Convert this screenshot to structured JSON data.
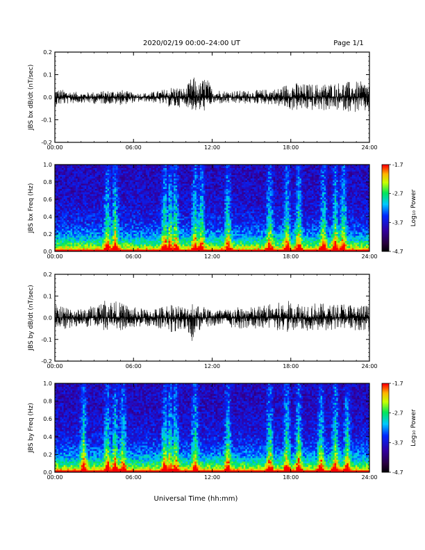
{
  "header": {
    "date_range": "2020/02/19  00:00–24:00 UT",
    "page": "Page 1/1"
  },
  "footer": {
    "xlabel": "Universal Time (hh:mm)"
  },
  "chart_data": [
    {
      "type": "line",
      "ylabel": "JBS bx dB/dt (nT/sec)",
      "ylim": [
        -0.2,
        0.2
      ],
      "yticks": [
        "0.2",
        "0.1",
        "0.0",
        "-0.1",
        "-0.2"
      ],
      "xlim": [
        0,
        24
      ],
      "xticks": [
        "00:00",
        "06:00",
        "12:00",
        "18:00",
        "24:00"
      ],
      "series": [
        {
          "hours": [
            0,
            1,
            2,
            3,
            4,
            5,
            6,
            7,
            8,
            9,
            10,
            10.5,
            11,
            11.5,
            12,
            13,
            14,
            15,
            16,
            17,
            18,
            19,
            20,
            21,
            22,
            23,
            24
          ],
          "envelope_max": [
            0.04,
            0.03,
            0.02,
            0.025,
            0.03,
            0.035,
            0.02,
            0.02,
            0.03,
            0.05,
            0.04,
            0.1,
            0.06,
            0.1,
            0.04,
            0.03,
            0.03,
            0.03,
            0.035,
            0.04,
            0.07,
            0.06,
            0.06,
            0.065,
            0.07,
            0.07,
            0.07
          ],
          "envelope_min": [
            -0.04,
            -0.03,
            -0.025,
            -0.03,
            -0.03,
            -0.035,
            -0.025,
            -0.02,
            -0.03,
            -0.05,
            -0.04,
            -0.06,
            -0.07,
            -0.06,
            -0.03,
            -0.03,
            -0.03,
            -0.03,
            -0.03,
            -0.04,
            -0.06,
            -0.06,
            -0.06,
            -0.06,
            -0.06,
            -0.07,
            -0.07
          ]
        }
      ],
      "grid": false
    },
    {
      "type": "heatmap",
      "ylabel": "JBS bx Freq (Hz)",
      "ylim": [
        0,
        1
      ],
      "yticks": [
        "1.0",
        "0.8",
        "0.6",
        "0.4",
        "0.2",
        "0.0"
      ],
      "xlim": [
        0,
        24
      ],
      "xticks": [
        "00:00",
        "06:00",
        "12:00",
        "18:00",
        "24:00"
      ],
      "colorbar": {
        "label": "Log₁₀ Power",
        "ticks": [
          "-1.7",
          "-2.7",
          "-3.7",
          "-4.7"
        ],
        "range": [
          -4.7,
          -1.7
        ]
      },
      "bright_bands_hours": [
        4.0,
        4.6,
        8.4,
        8.8,
        9.2,
        10.7,
        11.2,
        13.2,
        16.4,
        17.7,
        18.6,
        20.5,
        21.4,
        22.0
      ]
    },
    {
      "type": "line",
      "ylabel": "JBS by dB/dt (nT/sec)",
      "ylim": [
        -0.2,
        0.2
      ],
      "yticks": [
        "0.2",
        "0.1",
        "0.0",
        "-0.1",
        "-0.2"
      ],
      "xlim": [
        0,
        24
      ],
      "xticks": [
        "00:00",
        "06:00",
        "12:00",
        "18:00",
        "24:00"
      ],
      "series": [
        {
          "hours": [
            0,
            1,
            2,
            3,
            4,
            5,
            6,
            7,
            8,
            9,
            10,
            10.5,
            11,
            11.5,
            12,
            13,
            14,
            15,
            16,
            17,
            18,
            19,
            20,
            21,
            22,
            23,
            24
          ],
          "envelope_max": [
            0.06,
            0.05,
            0.04,
            0.06,
            0.09,
            0.07,
            0.05,
            0.04,
            0.05,
            0.07,
            0.05,
            0.08,
            0.06,
            0.05,
            0.04,
            0.04,
            0.05,
            0.05,
            0.06,
            0.07,
            0.08,
            0.07,
            0.07,
            0.06,
            0.07,
            0.06,
            0.06
          ],
          "envelope_min": [
            -0.06,
            -0.05,
            -0.04,
            -0.05,
            -0.06,
            -0.06,
            -0.05,
            -0.04,
            -0.05,
            -0.07,
            -0.05,
            -0.11,
            -0.06,
            -0.05,
            -0.04,
            -0.04,
            -0.05,
            -0.05,
            -0.05,
            -0.06,
            -0.07,
            -0.06,
            -0.06,
            -0.06,
            -0.06,
            -0.06,
            -0.06
          ]
        }
      ],
      "grid": false
    },
    {
      "type": "heatmap",
      "ylabel": "JBS by Freq (Hz)",
      "ylim": [
        0,
        1
      ],
      "yticks": [
        "1.0",
        "0.8",
        "0.6",
        "0.4",
        "0.2",
        "0.0"
      ],
      "xlim": [
        0,
        24
      ],
      "xticks": [
        "00:00",
        "06:00",
        "12:00",
        "18:00",
        "24:00"
      ],
      "colorbar": {
        "label": "Log₁₀ Power",
        "ticks": [
          "-1.7",
          "-2.7",
          "-3.7",
          "-4.7"
        ],
        "range": [
          -4.7,
          -1.7
        ]
      },
      "bright_bands_hours": [
        2.2,
        4.0,
        4.6,
        5.2,
        8.4,
        8.8,
        9.2,
        10.7,
        13.2,
        16.4,
        17.7,
        18.6,
        20.3,
        21.4,
        22.3
      ]
    }
  ]
}
